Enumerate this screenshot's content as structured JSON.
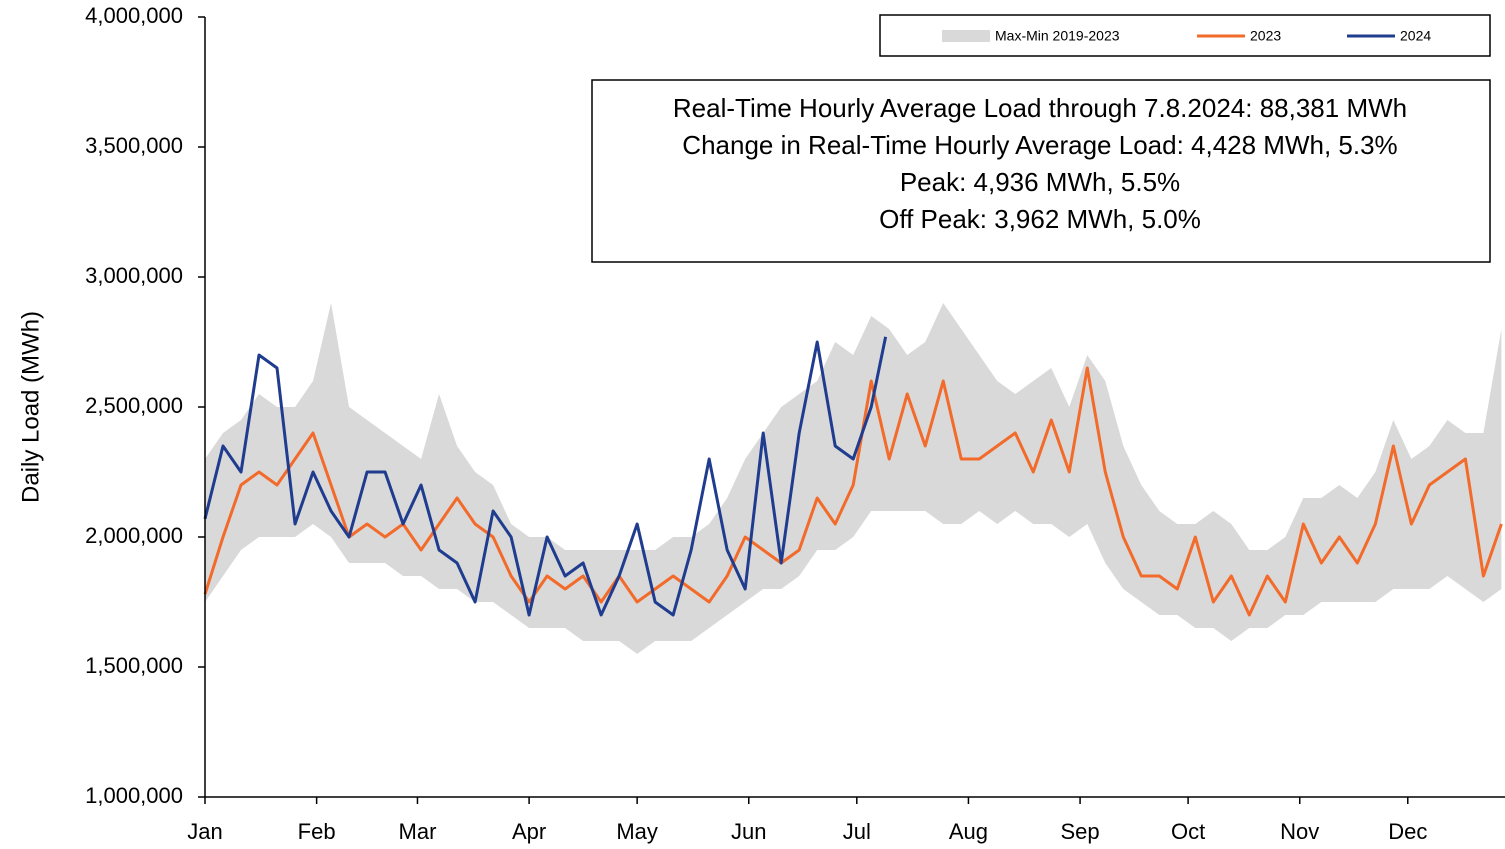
{
  "chart_data": {
    "type": "line",
    "y_label": "Daily Load (MWh)",
    "annotations": [
      "Real-Time Hourly Average Load through 7.8.2024: 88,381 MWh",
      "Change in Real-Time Hourly Average Load: 4,428 MWh, 5.3%",
      "Peak: 4,936 MWh, 5.5%",
      "Off Peak: 3,962 MWh, 5.0%"
    ],
    "xlim": [
      0,
      361
    ],
    "xticks": [
      {
        "value": 0,
        "label": "Jan"
      },
      {
        "value": 31,
        "label": "Feb"
      },
      {
        "value": 59,
        "label": "Mar"
      },
      {
        "value": 90,
        "label": "Apr"
      },
      {
        "value": 120,
        "label": "May"
      },
      {
        "value": 151,
        "label": "Jun"
      },
      {
        "value": 181,
        "label": "Jul"
      },
      {
        "value": 212,
        "label": "Aug"
      },
      {
        "value": 243,
        "label": "Sep"
      },
      {
        "value": 273,
        "label": "Oct"
      },
      {
        "value": 304,
        "label": "Nov"
      },
      {
        "value": 334,
        "label": "Dec"
      }
    ],
    "ylim": [
      1000000,
      4000000
    ],
    "yticks": [
      {
        "value": 1000000,
        "label": "1,000,000"
      },
      {
        "value": 1500000,
        "label": "1,500,000"
      },
      {
        "value": 2000000,
        "label": "2,000,000"
      },
      {
        "value": 2500000,
        "label": "2,500,000"
      },
      {
        "value": 3000000,
        "label": "3,000,000"
      },
      {
        "value": 3500000,
        "label": "3,500,000"
      },
      {
        "value": 4000000,
        "label": "4,000,000"
      }
    ],
    "grid": false,
    "legend": "top-right",
    "band": {
      "name": "Max-Min 2019-2023",
      "color": "#d9d9d9",
      "x": [
        0,
        5,
        10,
        15,
        20,
        25,
        30,
        35,
        40,
        45,
        50,
        55,
        60,
        65,
        70,
        75,
        80,
        85,
        90,
        95,
        100,
        105,
        110,
        115,
        120,
        125,
        130,
        135,
        140,
        145,
        150,
        155,
        160,
        165,
        170,
        175,
        180,
        185,
        190,
        195,
        200,
        205,
        210,
        215,
        220,
        225,
        230,
        235,
        240,
        245,
        250,
        255,
        260,
        265,
        270,
        275,
        280,
        285,
        290,
        295,
        300,
        305,
        310,
        315,
        320,
        325,
        330,
        335,
        340,
        345,
        350,
        355,
        360
      ],
      "max": [
        2300000,
        2400000,
        2450000,
        2550000,
        2500000,
        2500000,
        2600000,
        2900000,
        2500000,
        2450000,
        2400000,
        2350000,
        2300000,
        2550000,
        2350000,
        2250000,
        2200000,
        2050000,
        2000000,
        2000000,
        1950000,
        1950000,
        1950000,
        1950000,
        1950000,
        1950000,
        2000000,
        2000000,
        2050000,
        2150000,
        2300000,
        2400000,
        2500000,
        2550000,
        2600000,
        2750000,
        2700000,
        2850000,
        2800000,
        2700000,
        2750000,
        2900000,
        2800000,
        2700000,
        2600000,
        2550000,
        2600000,
        2650000,
        2500000,
        2700000,
        2600000,
        2350000,
        2200000,
        2100000,
        2050000,
        2050000,
        2100000,
        2050000,
        1950000,
        1950000,
        2000000,
        2150000,
        2150000,
        2200000,
        2150000,
        2250000,
        2450000,
        2300000,
        2350000,
        2450000,
        2400000,
        2400000,
        2800000
      ],
      "min": [
        1750000,
        1850000,
        1950000,
        2000000,
        2000000,
        2000000,
        2050000,
        2000000,
        1900000,
        1900000,
        1900000,
        1850000,
        1850000,
        1800000,
        1800000,
        1750000,
        1750000,
        1700000,
        1650000,
        1650000,
        1650000,
        1600000,
        1600000,
        1600000,
        1550000,
        1600000,
        1600000,
        1600000,
        1650000,
        1700000,
        1750000,
        1800000,
        1800000,
        1850000,
        1950000,
        1950000,
        2000000,
        2100000,
        2100000,
        2100000,
        2100000,
        2050000,
        2050000,
        2100000,
        2050000,
        2100000,
        2050000,
        2050000,
        2000000,
        2050000,
        1900000,
        1800000,
        1750000,
        1700000,
        1700000,
        1650000,
        1650000,
        1600000,
        1650000,
        1650000,
        1700000,
        1700000,
        1750000,
        1750000,
        1750000,
        1750000,
        1800000,
        1800000,
        1800000,
        1850000,
        1800000,
        1750000,
        1800000
      ]
    },
    "series": [
      {
        "name": "2023",
        "color": "#f26b2b",
        "x": [
          0,
          5,
          10,
          15,
          20,
          25,
          30,
          35,
          40,
          45,
          50,
          55,
          60,
          65,
          70,
          75,
          80,
          85,
          90,
          95,
          100,
          105,
          110,
          115,
          120,
          125,
          130,
          135,
          140,
          145,
          150,
          155,
          160,
          165,
          170,
          175,
          180,
          185,
          190,
          195,
          200,
          205,
          210,
          215,
          220,
          225,
          230,
          235,
          240,
          245,
          250,
          255,
          260,
          265,
          270,
          275,
          280,
          285,
          290,
          295,
          300,
          305,
          310,
          315,
          320,
          325,
          330,
          335,
          340,
          345,
          350,
          355,
          360
        ],
        "values": [
          1780000,
          2000000,
          2200000,
          2250000,
          2200000,
          2300000,
          2400000,
          2200000,
          2000000,
          2050000,
          2000000,
          2050000,
          1950000,
          2050000,
          2150000,
          2050000,
          2000000,
          1850000,
          1750000,
          1850000,
          1800000,
          1850000,
          1750000,
          1850000,
          1750000,
          1800000,
          1850000,
          1800000,
          1750000,
          1850000,
          2000000,
          1950000,
          1900000,
          1950000,
          2150000,
          2050000,
          2200000,
          2600000,
          2300000,
          2550000,
          2350000,
          2600000,
          2300000,
          2300000,
          2350000,
          2400000,
          2250000,
          2450000,
          2250000,
          2650000,
          2250000,
          2000000,
          1850000,
          1850000,
          1800000,
          2000000,
          1750000,
          1850000,
          1700000,
          1850000,
          1750000,
          2050000,
          1900000,
          2000000,
          1900000,
          2050000,
          2350000,
          2050000,
          2200000,
          2250000,
          2300000,
          1850000,
          2050000
        ]
      },
      {
        "name": "2024",
        "color": "#1f3c8f",
        "x": [
          0,
          5,
          10,
          15,
          20,
          25,
          30,
          35,
          40,
          45,
          50,
          55,
          60,
          65,
          70,
          75,
          80,
          85,
          90,
          95,
          100,
          105,
          110,
          115,
          120,
          125,
          130,
          135,
          140,
          145,
          150,
          155,
          160,
          165,
          170,
          175,
          180,
          185,
          189
        ],
        "values": [
          2070000,
          2350000,
          2250000,
          2700000,
          2650000,
          2050000,
          2250000,
          2100000,
          2000000,
          2250000,
          2250000,
          2050000,
          2200000,
          1950000,
          1900000,
          1750000,
          2100000,
          2000000,
          1700000,
          2000000,
          1850000,
          1900000,
          1700000,
          1850000,
          2050000,
          1750000,
          1700000,
          1950000,
          2300000,
          1950000,
          1800000,
          2400000,
          1900000,
          2400000,
          2750000,
          2350000,
          2300000,
          2500000,
          2770000
        ]
      }
    ]
  }
}
